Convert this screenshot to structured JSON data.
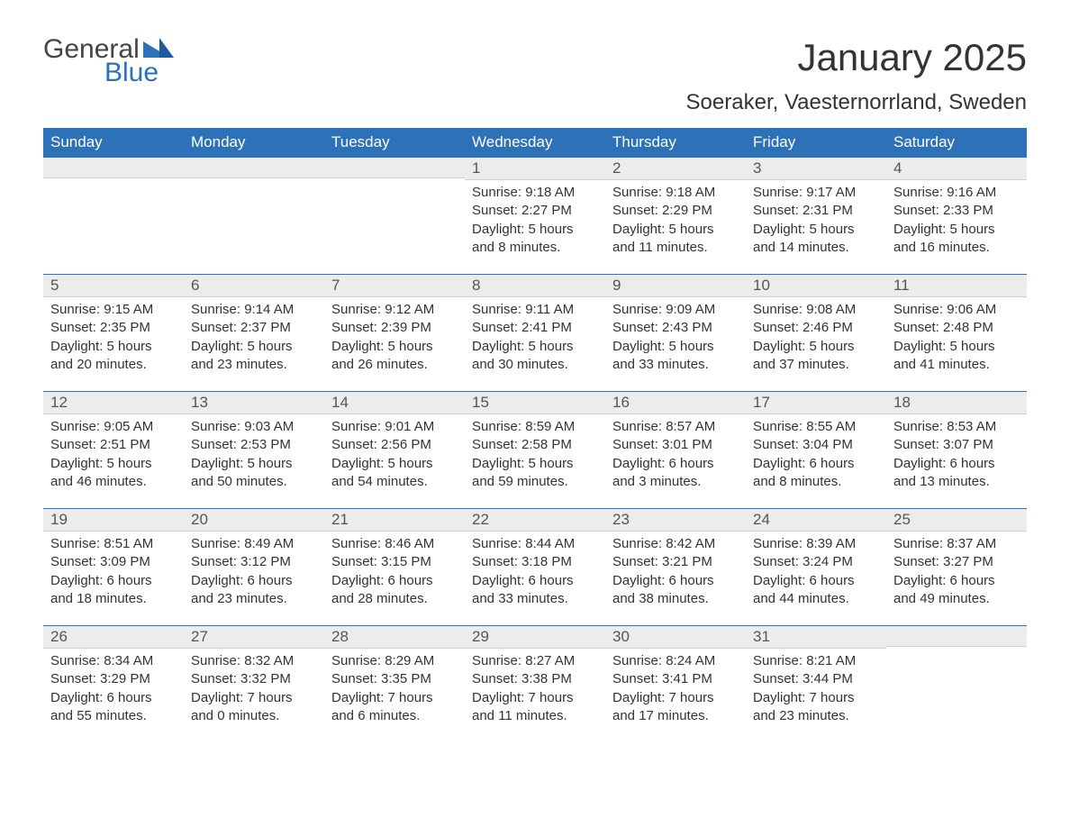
{
  "brand": {
    "word1": "General",
    "word2": "Blue",
    "flag_color": "#2d71b8"
  },
  "title": "January 2025",
  "location": "Soeraker, Vaesternorrland, Sweden",
  "day_headers": [
    "Sunday",
    "Monday",
    "Tuesday",
    "Wednesday",
    "Thursday",
    "Friday",
    "Saturday"
  ],
  "header_bg": "#2d71b8",
  "header_text": "#ffffff",
  "daynum_bg": "#ececec",
  "rule_color": "#2d71b8",
  "weeks": [
    [
      null,
      null,
      null,
      {
        "n": "1",
        "sunrise": "9:18 AM",
        "sunset": "2:27 PM",
        "dl1": "Daylight: 5 hours",
        "dl2": "and 8 minutes."
      },
      {
        "n": "2",
        "sunrise": "9:18 AM",
        "sunset": "2:29 PM",
        "dl1": "Daylight: 5 hours",
        "dl2": "and 11 minutes."
      },
      {
        "n": "3",
        "sunrise": "9:17 AM",
        "sunset": "2:31 PM",
        "dl1": "Daylight: 5 hours",
        "dl2": "and 14 minutes."
      },
      {
        "n": "4",
        "sunrise": "9:16 AM",
        "sunset": "2:33 PM",
        "dl1": "Daylight: 5 hours",
        "dl2": "and 16 minutes."
      }
    ],
    [
      {
        "n": "5",
        "sunrise": "9:15 AM",
        "sunset": "2:35 PM",
        "dl1": "Daylight: 5 hours",
        "dl2": "and 20 minutes."
      },
      {
        "n": "6",
        "sunrise": "9:14 AM",
        "sunset": "2:37 PM",
        "dl1": "Daylight: 5 hours",
        "dl2": "and 23 minutes."
      },
      {
        "n": "7",
        "sunrise": "9:12 AM",
        "sunset": "2:39 PM",
        "dl1": "Daylight: 5 hours",
        "dl2": "and 26 minutes."
      },
      {
        "n": "8",
        "sunrise": "9:11 AM",
        "sunset": "2:41 PM",
        "dl1": "Daylight: 5 hours",
        "dl2": "and 30 minutes."
      },
      {
        "n": "9",
        "sunrise": "9:09 AM",
        "sunset": "2:43 PM",
        "dl1": "Daylight: 5 hours",
        "dl2": "and 33 minutes."
      },
      {
        "n": "10",
        "sunrise": "9:08 AM",
        "sunset": "2:46 PM",
        "dl1": "Daylight: 5 hours",
        "dl2": "and 37 minutes."
      },
      {
        "n": "11",
        "sunrise": "9:06 AM",
        "sunset": "2:48 PM",
        "dl1": "Daylight: 5 hours",
        "dl2": "and 41 minutes."
      }
    ],
    [
      {
        "n": "12",
        "sunrise": "9:05 AM",
        "sunset": "2:51 PM",
        "dl1": "Daylight: 5 hours",
        "dl2": "and 46 minutes."
      },
      {
        "n": "13",
        "sunrise": "9:03 AM",
        "sunset": "2:53 PM",
        "dl1": "Daylight: 5 hours",
        "dl2": "and 50 minutes."
      },
      {
        "n": "14",
        "sunrise": "9:01 AM",
        "sunset": "2:56 PM",
        "dl1": "Daylight: 5 hours",
        "dl2": "and 54 minutes."
      },
      {
        "n": "15",
        "sunrise": "8:59 AM",
        "sunset": "2:58 PM",
        "dl1": "Daylight: 5 hours",
        "dl2": "and 59 minutes."
      },
      {
        "n": "16",
        "sunrise": "8:57 AM",
        "sunset": "3:01 PM",
        "dl1": "Daylight: 6 hours",
        "dl2": "and 3 minutes."
      },
      {
        "n": "17",
        "sunrise": "8:55 AM",
        "sunset": "3:04 PM",
        "dl1": "Daylight: 6 hours",
        "dl2": "and 8 minutes."
      },
      {
        "n": "18",
        "sunrise": "8:53 AM",
        "sunset": "3:07 PM",
        "dl1": "Daylight: 6 hours",
        "dl2": "and 13 minutes."
      }
    ],
    [
      {
        "n": "19",
        "sunrise": "8:51 AM",
        "sunset": "3:09 PM",
        "dl1": "Daylight: 6 hours",
        "dl2": "and 18 minutes."
      },
      {
        "n": "20",
        "sunrise": "8:49 AM",
        "sunset": "3:12 PM",
        "dl1": "Daylight: 6 hours",
        "dl2": "and 23 minutes."
      },
      {
        "n": "21",
        "sunrise": "8:46 AM",
        "sunset": "3:15 PM",
        "dl1": "Daylight: 6 hours",
        "dl2": "and 28 minutes."
      },
      {
        "n": "22",
        "sunrise": "8:44 AM",
        "sunset": "3:18 PM",
        "dl1": "Daylight: 6 hours",
        "dl2": "and 33 minutes."
      },
      {
        "n": "23",
        "sunrise": "8:42 AM",
        "sunset": "3:21 PM",
        "dl1": "Daylight: 6 hours",
        "dl2": "and 38 minutes."
      },
      {
        "n": "24",
        "sunrise": "8:39 AM",
        "sunset": "3:24 PM",
        "dl1": "Daylight: 6 hours",
        "dl2": "and 44 minutes."
      },
      {
        "n": "25",
        "sunrise": "8:37 AM",
        "sunset": "3:27 PM",
        "dl1": "Daylight: 6 hours",
        "dl2": "and 49 minutes."
      }
    ],
    [
      {
        "n": "26",
        "sunrise": "8:34 AM",
        "sunset": "3:29 PM",
        "dl1": "Daylight: 6 hours",
        "dl2": "and 55 minutes."
      },
      {
        "n": "27",
        "sunrise": "8:32 AM",
        "sunset": "3:32 PM",
        "dl1": "Daylight: 7 hours",
        "dl2": "and 0 minutes."
      },
      {
        "n": "28",
        "sunrise": "8:29 AM",
        "sunset": "3:35 PM",
        "dl1": "Daylight: 7 hours",
        "dl2": "and 6 minutes."
      },
      {
        "n": "29",
        "sunrise": "8:27 AM",
        "sunset": "3:38 PM",
        "dl1": "Daylight: 7 hours",
        "dl2": "and 11 minutes."
      },
      {
        "n": "30",
        "sunrise": "8:24 AM",
        "sunset": "3:41 PM",
        "dl1": "Daylight: 7 hours",
        "dl2": "and 17 minutes."
      },
      {
        "n": "31",
        "sunrise": "8:21 AM",
        "sunset": "3:44 PM",
        "dl1": "Daylight: 7 hours",
        "dl2": "and 23 minutes."
      },
      null
    ]
  ],
  "labels": {
    "sunrise": "Sunrise: ",
    "sunset": "Sunset: "
  }
}
